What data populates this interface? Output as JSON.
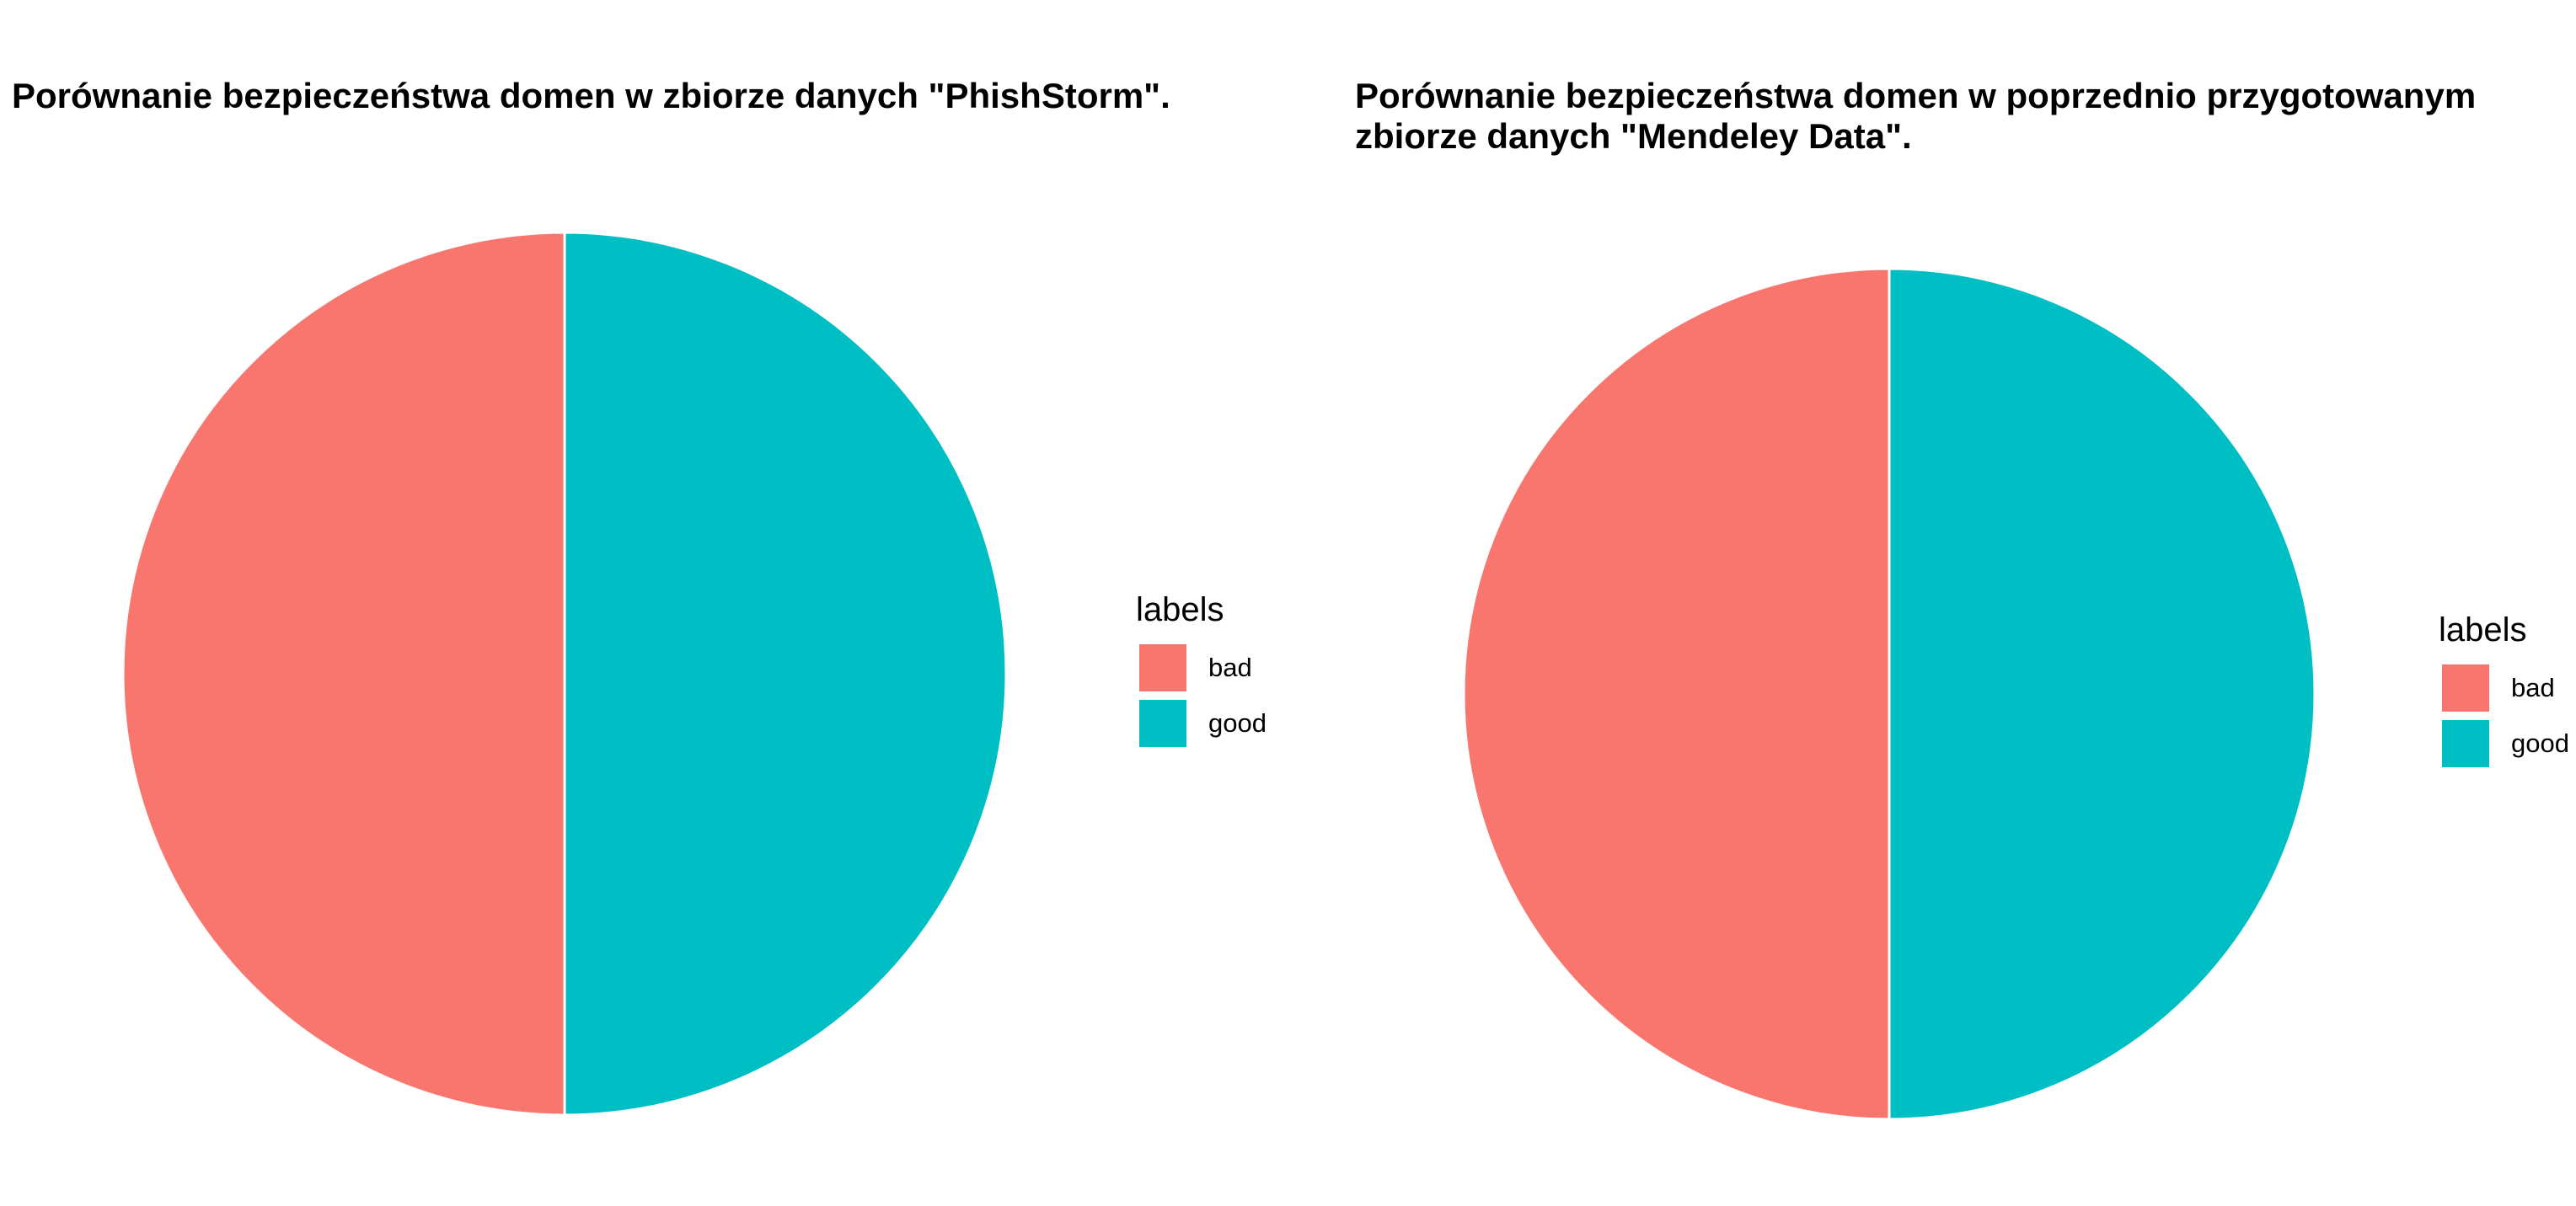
{
  "chart_data": [
    {
      "type": "pie",
      "title": "Porównanie bezpieczeństwa domen w zbiorze danych \"PhishStorm\".",
      "title_lines": [
        "Porównanie bezpieczeństwa domen w zbiorze danych \"PhishStorm\"."
      ],
      "legend_title": "labels",
      "legend_position": "right",
      "slices": [
        {
          "label": "bad",
          "value": 0.5,
          "color": "#F8766D"
        },
        {
          "label": "good",
          "value": 0.5,
          "color": "#00BFC4"
        }
      ]
    },
    {
      "type": "pie",
      "title": "Porównanie bezpieczeństwa domen w poprzednio przygotowanym zbiorze danych \"Mendeley Data\".",
      "title_lines": [
        "Porównanie bezpieczeństwa domen w poprzednio przygotowanym",
        "zbiorze danych \"Mendeley Data\"."
      ],
      "legend_title": "labels",
      "legend_position": "right",
      "slices": [
        {
          "label": "bad",
          "value": 0.5,
          "color": "#F8766D"
        },
        {
          "label": "good",
          "value": 0.5,
          "color": "#00BFC4"
        }
      ]
    }
  ]
}
